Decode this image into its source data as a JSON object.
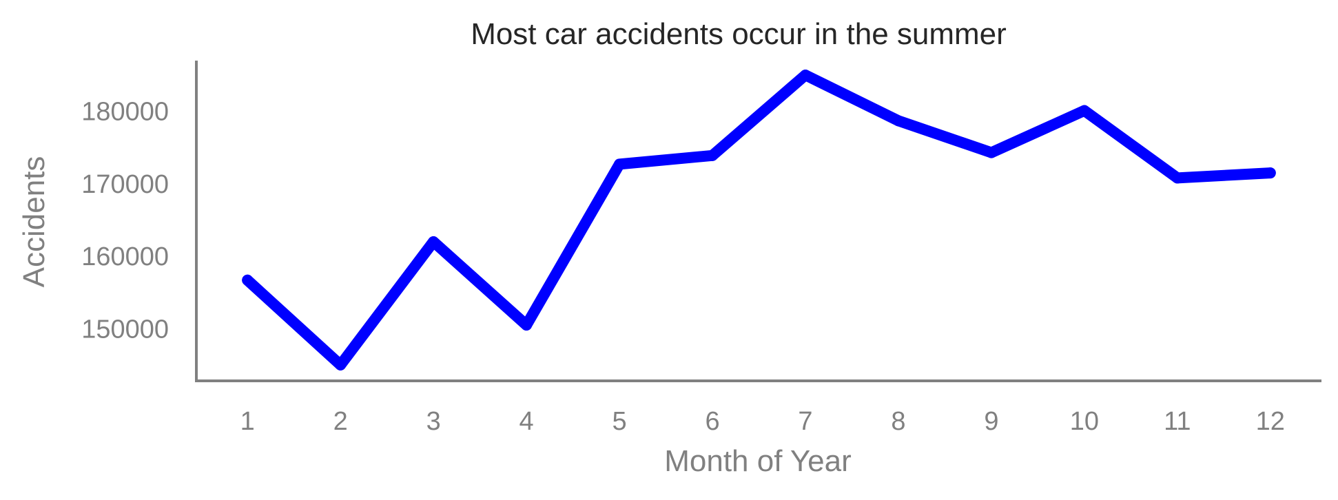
{
  "chart_data": {
    "type": "line",
    "title": "Most car accidents occur in the summer",
    "xlabel": "Month of Year",
    "ylabel": "Accidents",
    "x": [
      1,
      2,
      3,
      4,
      5,
      6,
      7,
      8,
      9,
      10,
      11,
      12
    ],
    "x_tick_labels": [
      "1",
      "2",
      "3",
      "4",
      "5",
      "6",
      "7",
      "8",
      "9",
      "10",
      "11",
      "12"
    ],
    "y_ticks": [
      150000,
      160000,
      170000,
      180000
    ],
    "y_tick_labels": [
      "150000",
      "160000",
      "170000",
      "180000"
    ],
    "xlim": [
      0.45,
      12.55
    ],
    "ylim": [
      142800,
      187000
    ],
    "series": [
      {
        "values": [
          156700,
          145000,
          162000,
          150500,
          172700,
          173900,
          185000,
          178700,
          174300,
          180100,
          170800,
          171500
        ]
      }
    ],
    "line_color": "#0000ff",
    "axis_color": "#808080",
    "grid": false,
    "spines": [
      "left",
      "bottom"
    ]
  }
}
